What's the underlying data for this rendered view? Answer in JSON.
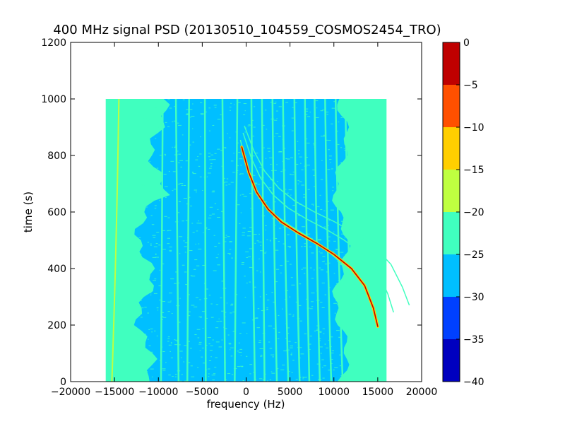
{
  "chart_data": {
    "type": "heatmap",
    "title": "400 MHz signal PSD (20130510_104559_COSMOS2454_TRO)",
    "xlabel": "frequency (Hz)",
    "ylabel": "time (s)",
    "xlim": [
      -20000,
      20000
    ],
    "ylim": [
      0,
      1200
    ],
    "xticks": [
      -20000,
      -15000,
      -10000,
      -5000,
      0,
      5000,
      10000,
      15000,
      20000
    ],
    "yticks": [
      0,
      200,
      400,
      600,
      800,
      1000,
      1200
    ],
    "grid": false,
    "data_extent": {
      "x": [
        -16000,
        16000
      ],
      "y": [
        0,
        1000
      ]
    },
    "colorbar": {
      "range": [
        -40,
        0
      ],
      "ticks": [
        0,
        -5,
        -10,
        -15,
        -20,
        -25,
        -30,
        -35,
        -40
      ],
      "bins": [
        {
          "from": -40,
          "to": -35,
          "color": "#0000bf"
        },
        {
          "from": -35,
          "to": -30,
          "color": "#0040ff"
        },
        {
          "from": -30,
          "to": -25,
          "color": "#00bfff"
        },
        {
          "from": -25,
          "to": -20,
          "color": "#40ffbf"
        },
        {
          "from": -20,
          "to": -15,
          "color": "#bfff40"
        },
        {
          "from": -15,
          "to": -10,
          "color": "#ffcf00"
        },
        {
          "from": -10,
          "to": -5,
          "color": "#ff5000"
        },
        {
          "from": -5,
          "to": 0,
          "color": "#bf0000"
        }
      ]
    },
    "main_signal_track": {
      "x": [
        15000,
        14500,
        13500,
        12000,
        10000,
        8000,
        6000,
        4000,
        2500,
        1200,
        300,
        -500
      ],
      "y": [
        195,
        260,
        340,
        400,
        450,
        490,
        525,
        565,
        610,
        670,
        740,
        830
      ]
    },
    "interference_lines": {
      "x": [
        -14500,
        -9500,
        -8000,
        -6500,
        -4700,
        -2700,
        -1000,
        600,
        1800,
        3000,
        4200,
        5500,
        6700,
        7800,
        9000,
        10200,
        11300
      ],
      "drift_hz": [
        -800,
        -200,
        300,
        -200,
        100,
        300,
        -300,
        400,
        300,
        500,
        600,
        600,
        500,
        600,
        700,
        800,
        900
      ]
    },
    "colors": {
      "background_level": "#40ffbf",
      "noise_level": "#00bfff",
      "line_level": "#bfff40"
    }
  }
}
